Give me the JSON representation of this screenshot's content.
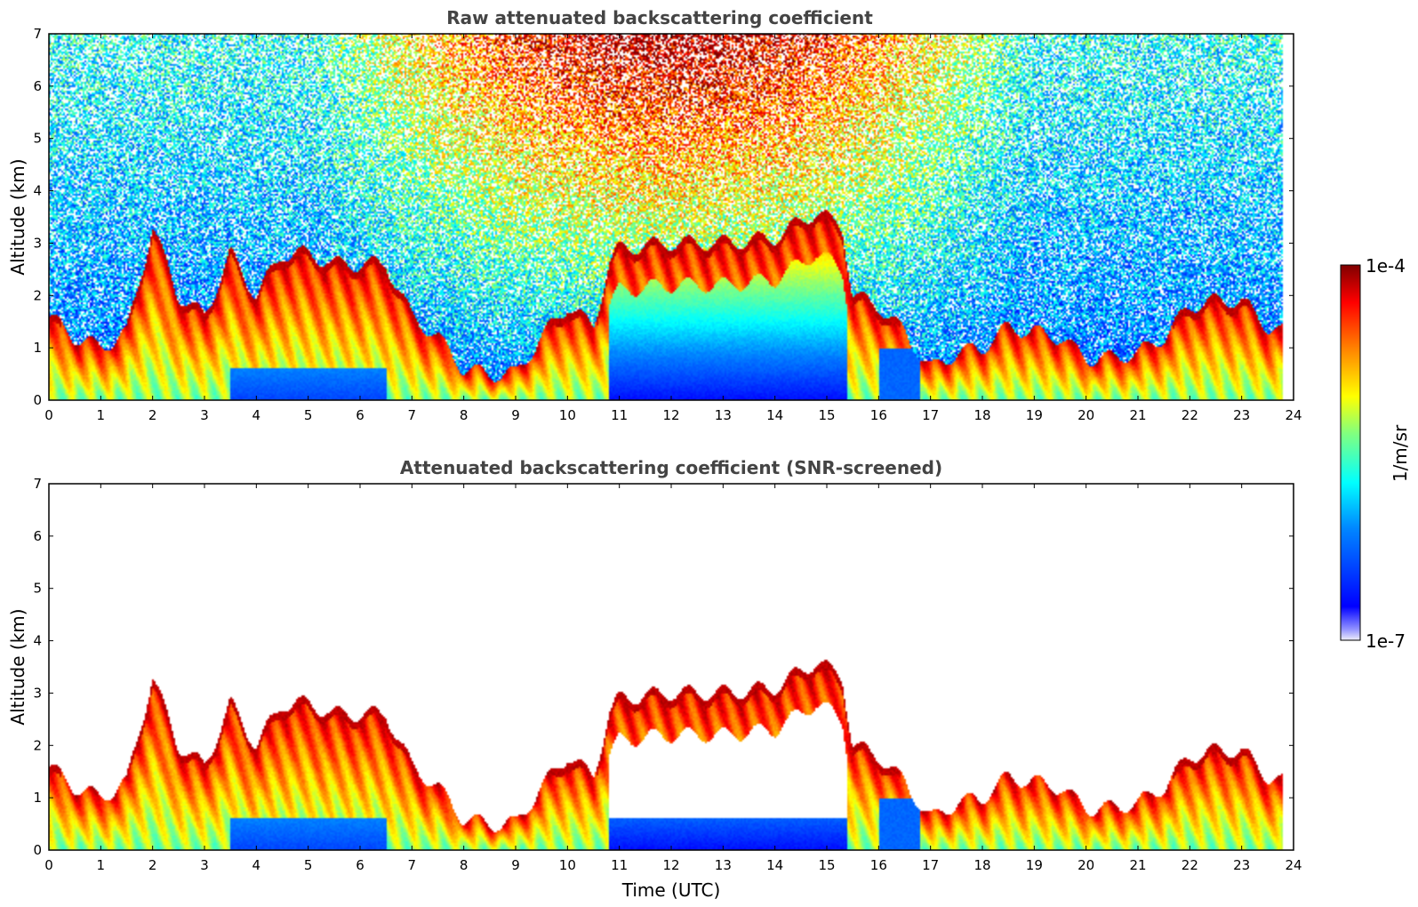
{
  "chart_data": [
    {
      "type": "heatmap",
      "title": "Raw attenuated backscattering coefficient",
      "xlabel": "",
      "ylabel": "Altitude (km)",
      "xlim": [
        0,
        24
      ],
      "ylim": [
        0,
        7
      ],
      "x_ticks": [
        "0",
        "1",
        "2",
        "3",
        "4",
        "5",
        "6",
        "7",
        "8",
        "9",
        "10",
        "11",
        "12",
        "13",
        "14",
        "15",
        "16",
        "17",
        "18",
        "19",
        "20",
        "21",
        "22",
        "23",
        "24"
      ],
      "y_ticks": [
        "0",
        "1",
        "2",
        "3",
        "4",
        "5",
        "6",
        "7"
      ],
      "screened": false,
      "data_end_time": 23.8,
      "aerosol_layer_top_km": [
        [
          0.0,
          1.6
        ],
        [
          0.5,
          1.2
        ],
        [
          1.0,
          1.0
        ],
        [
          1.5,
          1.3
        ],
        [
          2.0,
          3.3
        ],
        [
          2.5,
          2.0
        ],
        [
          3.0,
          1.6
        ],
        [
          3.5,
          2.8
        ],
        [
          4.0,
          2.0
        ],
        [
          4.5,
          2.8
        ],
        [
          5.0,
          2.8
        ],
        [
          5.5,
          2.6
        ],
        [
          6.0,
          2.6
        ],
        [
          6.5,
          2.6
        ],
        [
          7.0,
          1.6
        ],
        [
          7.5,
          1.2
        ],
        [
          8.0,
          0.6
        ],
        [
          8.5,
          0.5
        ],
        [
          9.0,
          0.5
        ],
        [
          9.5,
          1.2
        ],
        [
          10.0,
          1.8
        ],
        [
          10.5,
          1.4
        ],
        [
          10.8,
          2.6
        ],
        [
          11.0,
          2.9
        ],
        [
          12.0,
          3.0
        ],
        [
          13.0,
          3.0
        ],
        [
          14.0,
          3.1
        ],
        [
          14.8,
          3.6
        ],
        [
          15.3,
          3.3
        ],
        [
          15.5,
          2.0
        ],
        [
          16.0,
          1.8
        ],
        [
          16.5,
          1.3
        ],
        [
          17.0,
          0.6
        ],
        [
          17.5,
          0.9
        ],
        [
          18.0,
          1.0
        ],
        [
          18.5,
          1.4
        ],
        [
          19.0,
          1.3
        ],
        [
          19.5,
          1.2
        ],
        [
          20.0,
          0.8
        ],
        [
          20.5,
          0.8
        ],
        [
          21.0,
          0.9
        ],
        [
          21.5,
          1.2
        ],
        [
          22.0,
          1.8
        ],
        [
          22.5,
          1.9
        ],
        [
          23.0,
          1.9
        ],
        [
          23.5,
          1.4
        ],
        [
          23.8,
          1.3
        ]
      ]
    },
    {
      "type": "heatmap",
      "title": "Attenuated backscattering coefficient (SNR-screened)",
      "xlabel": "Time (UTC)",
      "ylabel": "Altitude (km)",
      "xlim": [
        0,
        24
      ],
      "ylim": [
        0,
        7
      ],
      "x_ticks": [
        "0",
        "1",
        "2",
        "3",
        "4",
        "5",
        "6",
        "7",
        "8",
        "9",
        "10",
        "11",
        "12",
        "13",
        "14",
        "15",
        "16",
        "17",
        "18",
        "19",
        "20",
        "21",
        "22",
        "23",
        "24"
      ],
      "y_ticks": [
        "0",
        "1",
        "2",
        "3",
        "4",
        "5",
        "6",
        "7"
      ],
      "screened": true,
      "data_end_time": 23.8,
      "aerosol_layer_top_km": [
        [
          0.0,
          1.6
        ],
        [
          0.5,
          1.2
        ],
        [
          1.0,
          1.0
        ],
        [
          1.5,
          1.3
        ],
        [
          2.0,
          3.3
        ],
        [
          2.5,
          2.0
        ],
        [
          3.0,
          1.6
        ],
        [
          3.5,
          2.8
        ],
        [
          4.0,
          2.0
        ],
        [
          4.5,
          2.8
        ],
        [
          5.0,
          2.8
        ],
        [
          5.5,
          2.6
        ],
        [
          6.0,
          2.6
        ],
        [
          6.5,
          2.6
        ],
        [
          7.0,
          1.6
        ],
        [
          7.5,
          1.2
        ],
        [
          8.0,
          0.6
        ],
        [
          8.5,
          0.5
        ],
        [
          9.0,
          0.5
        ],
        [
          9.5,
          1.2
        ],
        [
          10.0,
          1.8
        ],
        [
          10.5,
          1.4
        ],
        [
          10.8,
          2.6
        ],
        [
          11.0,
          2.9
        ],
        [
          12.0,
          3.0
        ],
        [
          13.0,
          3.0
        ],
        [
          14.0,
          3.1
        ],
        [
          14.8,
          3.6
        ],
        [
          15.3,
          3.3
        ],
        [
          15.5,
          2.0
        ],
        [
          16.0,
          1.8
        ],
        [
          16.5,
          1.3
        ],
        [
          17.0,
          0.6
        ],
        [
          17.5,
          0.9
        ],
        [
          18.0,
          1.0
        ],
        [
          18.5,
          1.4
        ],
        [
          19.0,
          1.3
        ],
        [
          19.5,
          1.2
        ],
        [
          20.0,
          0.8
        ],
        [
          20.5,
          0.8
        ],
        [
          21.0,
          0.9
        ],
        [
          21.5,
          1.2
        ],
        [
          22.0,
          1.8
        ],
        [
          22.5,
          1.9
        ],
        [
          23.0,
          1.9
        ],
        [
          23.5,
          1.4
        ],
        [
          23.8,
          1.3
        ]
      ]
    }
  ],
  "colorbar": {
    "label": "1/m/sr",
    "max_label": "1e-4",
    "min_label": "1e-7",
    "scale": "log",
    "colormap_stops": [
      "#e8e8f8",
      "#0000ff",
      "#0080ff",
      "#00ffff",
      "#80ff80",
      "#ffff00",
      "#ff8000",
      "#ff0000",
      "#800000"
    ]
  }
}
